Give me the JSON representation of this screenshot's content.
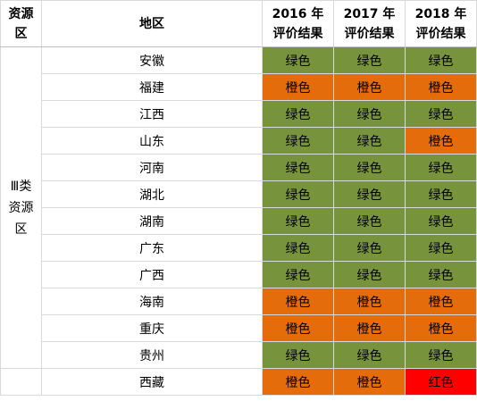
{
  "header": {
    "category_line1": "资源",
    "category_line2": "区",
    "region": "地区",
    "y2016_line1": "2016 年",
    "y2016_line2": "评价结果",
    "y2017_line1": "2017 年",
    "y2017_line2": "评价结果",
    "y2018_line1": "2018 年",
    "y2018_line2": "评价结果"
  },
  "category": {
    "line1": "Ⅲ类",
    "line2": "资源",
    "line3": "区"
  },
  "rows": [
    {
      "region": "安徽",
      "r2016": "绿色",
      "r2017": "绿色",
      "r2018": "绿色"
    },
    {
      "region": "福建",
      "r2016": "橙色",
      "r2017": "橙色",
      "r2018": "橙色"
    },
    {
      "region": "江西",
      "r2016": "绿色",
      "r2017": "绿色",
      "r2018": "绿色"
    },
    {
      "region": "山东",
      "r2016": "绿色",
      "r2017": "绿色",
      "r2018": "橙色"
    },
    {
      "region": "河南",
      "r2016": "绿色",
      "r2017": "绿色",
      "r2018": "绿色"
    },
    {
      "region": "湖北",
      "r2016": "绿色",
      "r2017": "绿色",
      "r2018": "绿色"
    },
    {
      "region": "湖南",
      "r2016": "绿色",
      "r2017": "绿色",
      "r2018": "绿色"
    },
    {
      "region": "广东",
      "r2016": "绿色",
      "r2017": "绿色",
      "r2018": "绿色"
    },
    {
      "region": "广西",
      "r2016": "绿色",
      "r2017": "绿色",
      "r2018": "绿色"
    },
    {
      "region": "海南",
      "r2016": "橙色",
      "r2017": "橙色",
      "r2018": "橙色"
    },
    {
      "region": "重庆",
      "r2016": "橙色",
      "r2017": "橙色",
      "r2018": "橙色"
    },
    {
      "region": "贵州",
      "r2016": "绿色",
      "r2017": "绿色",
      "r2018": "绿色"
    },
    {
      "region": "西藏",
      "r2016": "橙色",
      "r2017": "橙色",
      "r2018": "红色"
    }
  ],
  "colors": {
    "绿色": "#77933c",
    "橙色": "#e46c0a",
    "红色": "#ff0000"
  }
}
